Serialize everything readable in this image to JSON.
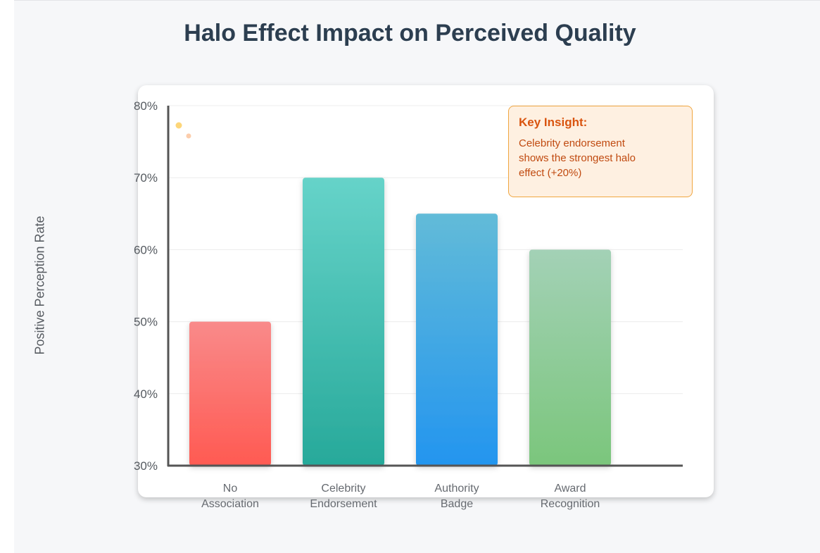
{
  "page": {
    "title": "Halo Effect Impact on Perceived Quality"
  },
  "insight": {
    "title": "Key Insight:",
    "text": "Celebrity endorsement shows the strongest halo effect (+20%)"
  },
  "colors": {
    "title": "#2c3e50",
    "axis": "#555555",
    "insight_background": "#fef0e1",
    "insight_border": "#f0a640",
    "insight_title": "#d9540f",
    "insight_text": "#c04a10"
  },
  "chart_data": {
    "type": "bar",
    "title": "Halo Effect Impact on Perceived Quality",
    "xlabel": "",
    "ylabel": "Positive Perception Rate",
    "ylim": [
      30,
      80
    ],
    "yticks": [
      "30%",
      "40%",
      "50%",
      "60%",
      "70%",
      "80%"
    ],
    "ytick_values": [
      30,
      40,
      50,
      60,
      70,
      80
    ],
    "grid": true,
    "legend": "none",
    "categories": [
      [
        "No",
        "Association"
      ],
      [
        "Celebrity",
        "Endorsement"
      ],
      [
        "Authority",
        "Badge"
      ],
      [
        "Award",
        "Recognition"
      ]
    ],
    "values": [
      50,
      70,
      65,
      60
    ],
    "bar_colors": [
      [
        "#f98a8a",
        "#ff5a52"
      ],
      [
        "#66d3c9",
        "#27a99a"
      ],
      [
        "#62bbd8",
        "#2395ef"
      ],
      [
        "#a3d1b6",
        "#7bc67c"
      ]
    ],
    "annotations": [
      "Key Insight: Celebrity endorsement shows the strongest halo effect (+20%)"
    ]
  }
}
